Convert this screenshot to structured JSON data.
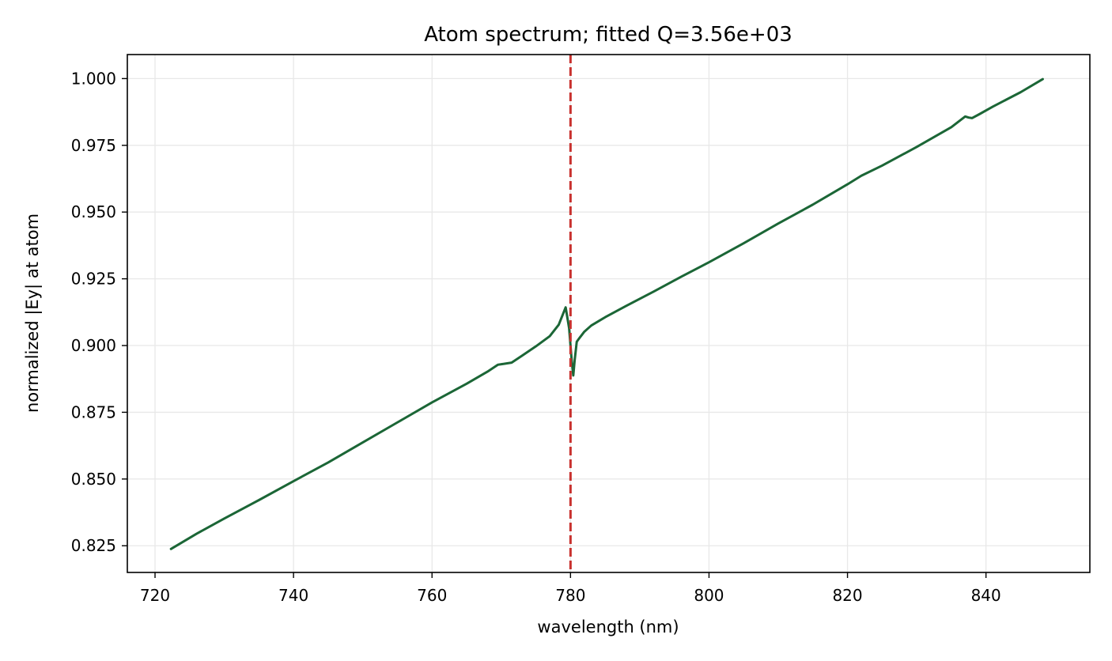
{
  "chart_data": {
    "type": "line",
    "title": "Atom spectrum; fitted Q=3.56e+03",
    "xlabel": "wavelength (nm)",
    "ylabel": "normalized |Ey| at atom",
    "xlim": [
      716,
      855
    ],
    "ylim": [
      0.815,
      1.009
    ],
    "xticks": [
      720,
      740,
      760,
      780,
      800,
      820,
      840
    ],
    "xtick_labels": [
      "720",
      "740",
      "760",
      "780",
      "800",
      "820",
      "840"
    ],
    "yticks": [
      0.825,
      0.85,
      0.875,
      0.9,
      0.925,
      0.95,
      0.975,
      1.0
    ],
    "ytick_labels": [
      "0.825",
      "0.850",
      "0.875",
      "0.900",
      "0.925",
      "0.950",
      "0.975",
      "1.000"
    ],
    "grid": true,
    "series": [
      {
        "color": "#1b6636",
        "x": [
          722.3,
          726,
          730,
          735,
          740,
          745,
          750,
          755,
          760,
          765,
          768,
          769.5,
          770.5,
          771.5,
          773,
          775,
          777,
          778.3,
          779.3,
          779.8,
          780.2,
          780.4,
          780.6,
          780.9,
          781.2,
          782,
          783,
          785,
          788,
          792,
          796,
          800,
          805,
          810,
          815,
          820,
          822,
          825,
          830,
          835,
          837,
          837.5,
          838,
          839,
          841,
          845,
          848.2
        ],
        "y": [
          0.8238,
          0.8295,
          0.8352,
          0.8421,
          0.8492,
          0.8562,
          0.8637,
          0.8712,
          0.8787,
          0.8857,
          0.8902,
          0.8928,
          0.8932,
          0.8936,
          0.8962,
          0.8997,
          0.9035,
          0.9078,
          0.9143,
          0.9065,
          0.8935,
          0.8888,
          0.8945,
          0.9014,
          0.9025,
          0.9052,
          0.9075,
          0.9106,
          0.9148,
          0.9202,
          0.9258,
          0.9312,
          0.9383,
          0.9457,
          0.9528,
          0.9604,
          0.9636,
          0.9674,
          0.9744,
          0.9818,
          0.9858,
          0.9854,
          0.9852,
          0.9866,
          0.9895,
          0.9949,
          0.9998
        ]
      }
    ],
    "annotations": [
      {
        "type": "vline",
        "x": 780,
        "color": "#c8312e",
        "style": "dashed"
      }
    ],
    "colors": {
      "line": "#1b6636",
      "vline": "#c8312e",
      "grid": "#e8e8e8",
      "axes": "#000000"
    }
  }
}
